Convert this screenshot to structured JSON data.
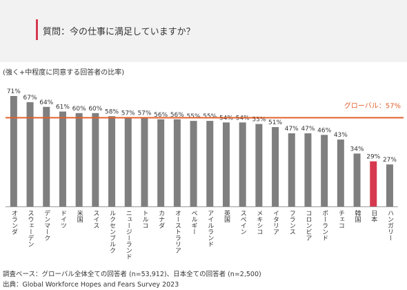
{
  "header": {
    "title": "質問：今の仕事に満足していますか？"
  },
  "subtitle": "(強く+中程度に同意する回答者の比率)",
  "footer": {
    "line1": "調査ベース：グローバル全体全ての回答者 (n=53,912)、日本全ての回答者 (n=2,500)",
    "line2": "出典：Global Workforce Hopes and Fears Survey 2023"
  },
  "colors": {
    "bar": "#7f7f7f",
    "highlight": "#d6394f",
    "reference_line": "#e0602d",
    "header_bg": "#f2f2f2"
  },
  "chart_data": {
    "type": "bar",
    "categories": [
      "オランダ",
      "スウェーデン",
      "デンマーク",
      "ドイツ",
      "米国",
      "スイス",
      "ルクセンブルク",
      "ニュージーランド",
      "トルコ",
      "カナダ",
      "オーストラリア",
      "ベルギー",
      "アイルランド",
      "英国",
      "スペイン",
      "メキシコ",
      "イタリア",
      "フランス",
      "コロンビア",
      "ポーランド",
      "チェコ",
      "韓国",
      "日本",
      "ハンガリー"
    ],
    "values": [
      71,
      67,
      64,
      61,
      60,
      60,
      58,
      57,
      57,
      56,
      56,
      55,
      55,
      54,
      54,
      53,
      51,
      47,
      47,
      46,
      43,
      34,
      29,
      27
    ],
    "value_labels": [
      "71%",
      "67%",
      "64%",
      "61%",
      "60%",
      "60%",
      "58%",
      "57%",
      "57%",
      "56%",
      "56%",
      "55%",
      "55%",
      "54%",
      "54%",
      "53%",
      "51%",
      "47%",
      "47%",
      "46%",
      "43%",
      "34%",
      "29%",
      "27%"
    ],
    "highlight_category": "日本",
    "reference_line": {
      "label": "グローバル：57%",
      "value": 57
    },
    "ylim": [
      0,
      100
    ],
    "grid": false,
    "legend": "none"
  }
}
